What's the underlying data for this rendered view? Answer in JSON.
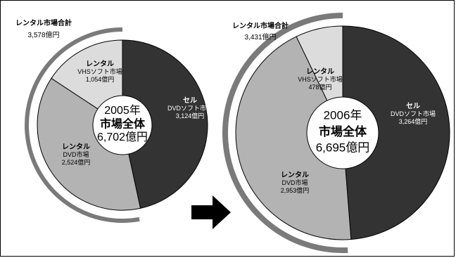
{
  "chart_data": [
    {
      "type": "pie",
      "year_label": "2005年",
      "center_title": "市場全体",
      "center_total": "6,702億円",
      "rental_total_title": "レンタル市場合計",
      "rental_total_value": "3,578億円",
      "slices": [
        {
          "key": "sell",
          "title": "セル",
          "sub": "DVDソフト市場",
          "value_label": "3,124億円",
          "value": 3124,
          "color": "#333333"
        },
        {
          "key": "rental_dvd",
          "title": "レンタル",
          "sub": "DVD市場",
          "value_label": "2,524億円",
          "value": 2524,
          "color": "#b3b3b3"
        },
        {
          "key": "rental_vhs",
          "title": "レンタル",
          "sub": "VHSソフト市場",
          "value_label": "1,054億円",
          "value": 1054,
          "color": "#dcdcdc"
        }
      ]
    },
    {
      "type": "pie",
      "year_label": "2006年",
      "center_title": "市場全体",
      "center_total": "6,695億円",
      "rental_total_title": "レンタル市場合計",
      "rental_total_value": "3,431億円",
      "slices": [
        {
          "key": "sell",
          "title": "セル",
          "sub": "DVDソフト市場",
          "value_label": "3,264億円",
          "value": 3264,
          "color": "#333333"
        },
        {
          "key": "rental_dvd",
          "title": "レンタル",
          "sub": "DVD市場",
          "value_label": "2,953億円",
          "value": 2953,
          "color": "#b3b3b3"
        },
        {
          "key": "rental_vhs",
          "title": "レンタル",
          "sub": "VHSソフト市場",
          "value_label": "478億円",
          "value": 478,
          "color": "#dcdcdc"
        }
      ]
    }
  ],
  "colors": {
    "arc": "#7a7a7a",
    "arrow": "#000000",
    "slice_border": "#000000"
  },
  "icons": {
    "arrow": "right-arrow-icon"
  }
}
